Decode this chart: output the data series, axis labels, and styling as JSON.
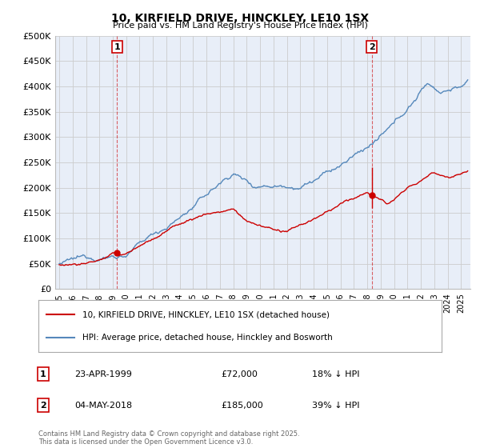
{
  "title": "10, KIRFIELD DRIVE, HINCKLEY, LE10 1SX",
  "subtitle": "Price paid vs. HM Land Registry's House Price Index (HPI)",
  "ylabel_ticks": [
    "£0",
    "£50K",
    "£100K",
    "£150K",
    "£200K",
    "£250K",
    "£300K",
    "£350K",
    "£400K",
    "£450K",
    "£500K"
  ],
  "ytick_values": [
    0,
    50000,
    100000,
    150000,
    200000,
    250000,
    300000,
    350000,
    400000,
    450000,
    500000
  ],
  "ylim": [
    0,
    500000
  ],
  "xlim_start": 1994.7,
  "xlim_end": 2025.7,
  "sale1_date": "23-APR-1999",
  "sale1_price": 72000,
  "sale1_hpi": "18% ↓ HPI",
  "sale1_year": 1999.31,
  "sale2_date": "04-MAY-2018",
  "sale2_price": 185000,
  "sale2_hpi": "39% ↓ HPI",
  "sale2_year": 2018.34,
  "red_color": "#cc0000",
  "blue_color": "#5588bb",
  "vline_color": "#cc0000",
  "chart_bg": "#e8eef8",
  "legend_label_red": "10, KIRFIELD DRIVE, HINCKLEY, LE10 1SX (detached house)",
  "legend_label_blue": "HPI: Average price, detached house, Hinckley and Bosworth",
  "footer": "Contains HM Land Registry data © Crown copyright and database right 2025.\nThis data is licensed under the Open Government Licence v3.0.",
  "background_color": "#ffffff",
  "grid_color": "#cccccc"
}
